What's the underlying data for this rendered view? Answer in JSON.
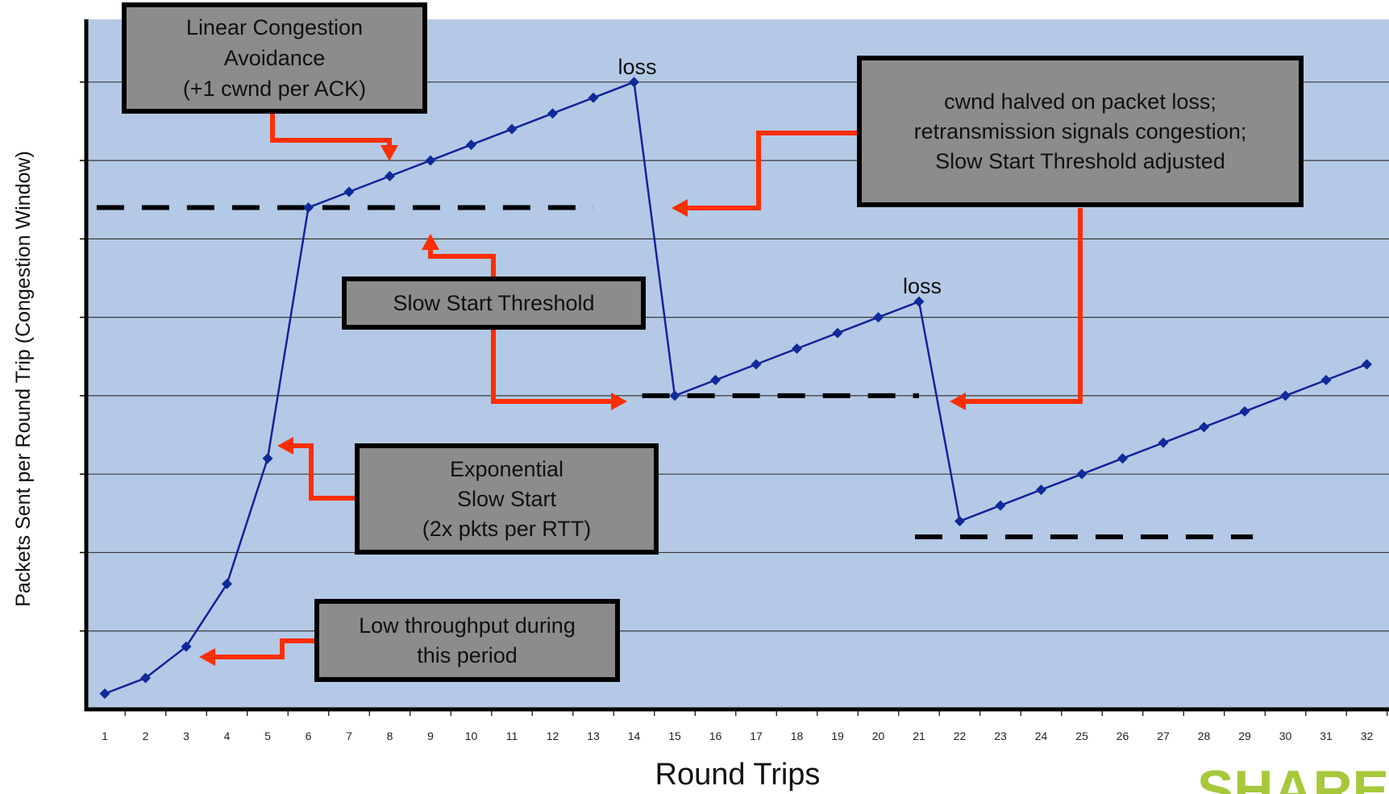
{
  "chart_data": {
    "type": "line",
    "title": "",
    "xlabel": "Round Trips",
    "ylabel": "Packets Sent per Round Trip (Congestion Window)",
    "x": [
      1,
      2,
      3,
      4,
      5,
      6,
      7,
      8,
      9,
      10,
      11,
      12,
      13,
      14,
      15,
      16,
      17,
      18,
      19,
      20,
      21,
      22,
      23,
      24,
      25,
      26,
      27,
      28,
      29,
      30,
      31,
      32
    ],
    "series": [
      {
        "values": [
          1,
          2,
          4,
          8,
          16,
          32,
          33,
          34,
          35,
          36,
          37,
          38,
          39,
          40,
          20,
          21,
          22,
          23,
          24,
          25,
          26,
          12,
          13,
          14,
          15,
          16,
          17,
          18,
          19,
          20,
          21,
          22
        ]
      }
    ],
    "ylim": [
      0,
      44
    ],
    "grid": true,
    "y_gridlines": [
      5,
      10,
      15,
      20,
      25,
      30,
      35,
      40
    ],
    "thresholds": [
      {
        "y": 32,
        "x_start": 0.8,
        "x_end": 13
      },
      {
        "y": 20,
        "x_start": 14.2,
        "x_end": 21
      },
      {
        "y": 11,
        "x_start": 20.9,
        "x_end": 29.2
      }
    ],
    "point_labels": [
      {
        "x": 14,
        "text": "loss"
      },
      {
        "x": 21,
        "text": "loss"
      }
    ],
    "annotations": [
      {
        "id": "linear",
        "lines": [
          "Linear Congestion",
          "Avoidance",
          "(+1 cwnd per ACK)"
        ]
      },
      {
        "id": "halved",
        "lines": [
          "cwnd halved on packet loss;",
          "retransmission signals congestion;",
          "Slow Start Threshold adjusted"
        ]
      },
      {
        "id": "ssthresh",
        "lines": [
          "Slow Start Threshold"
        ]
      },
      {
        "id": "exponential",
        "lines": [
          "Exponential",
          "Slow Start",
          "(2x pkts per RTT)"
        ]
      },
      {
        "id": "lowthroughput",
        "lines": [
          "Low throughput during",
          "this period"
        ]
      }
    ]
  },
  "colors": {
    "plot_bg": "#b4c9e5",
    "line": "#12239c",
    "marker": "#0f2a9a",
    "arrow": "#ff2e00",
    "box_fill": "#8c8c8c",
    "gridline": "#3a3a3a",
    "logo": "#a6c83a"
  },
  "logo": {
    "text": "SHARE"
  }
}
